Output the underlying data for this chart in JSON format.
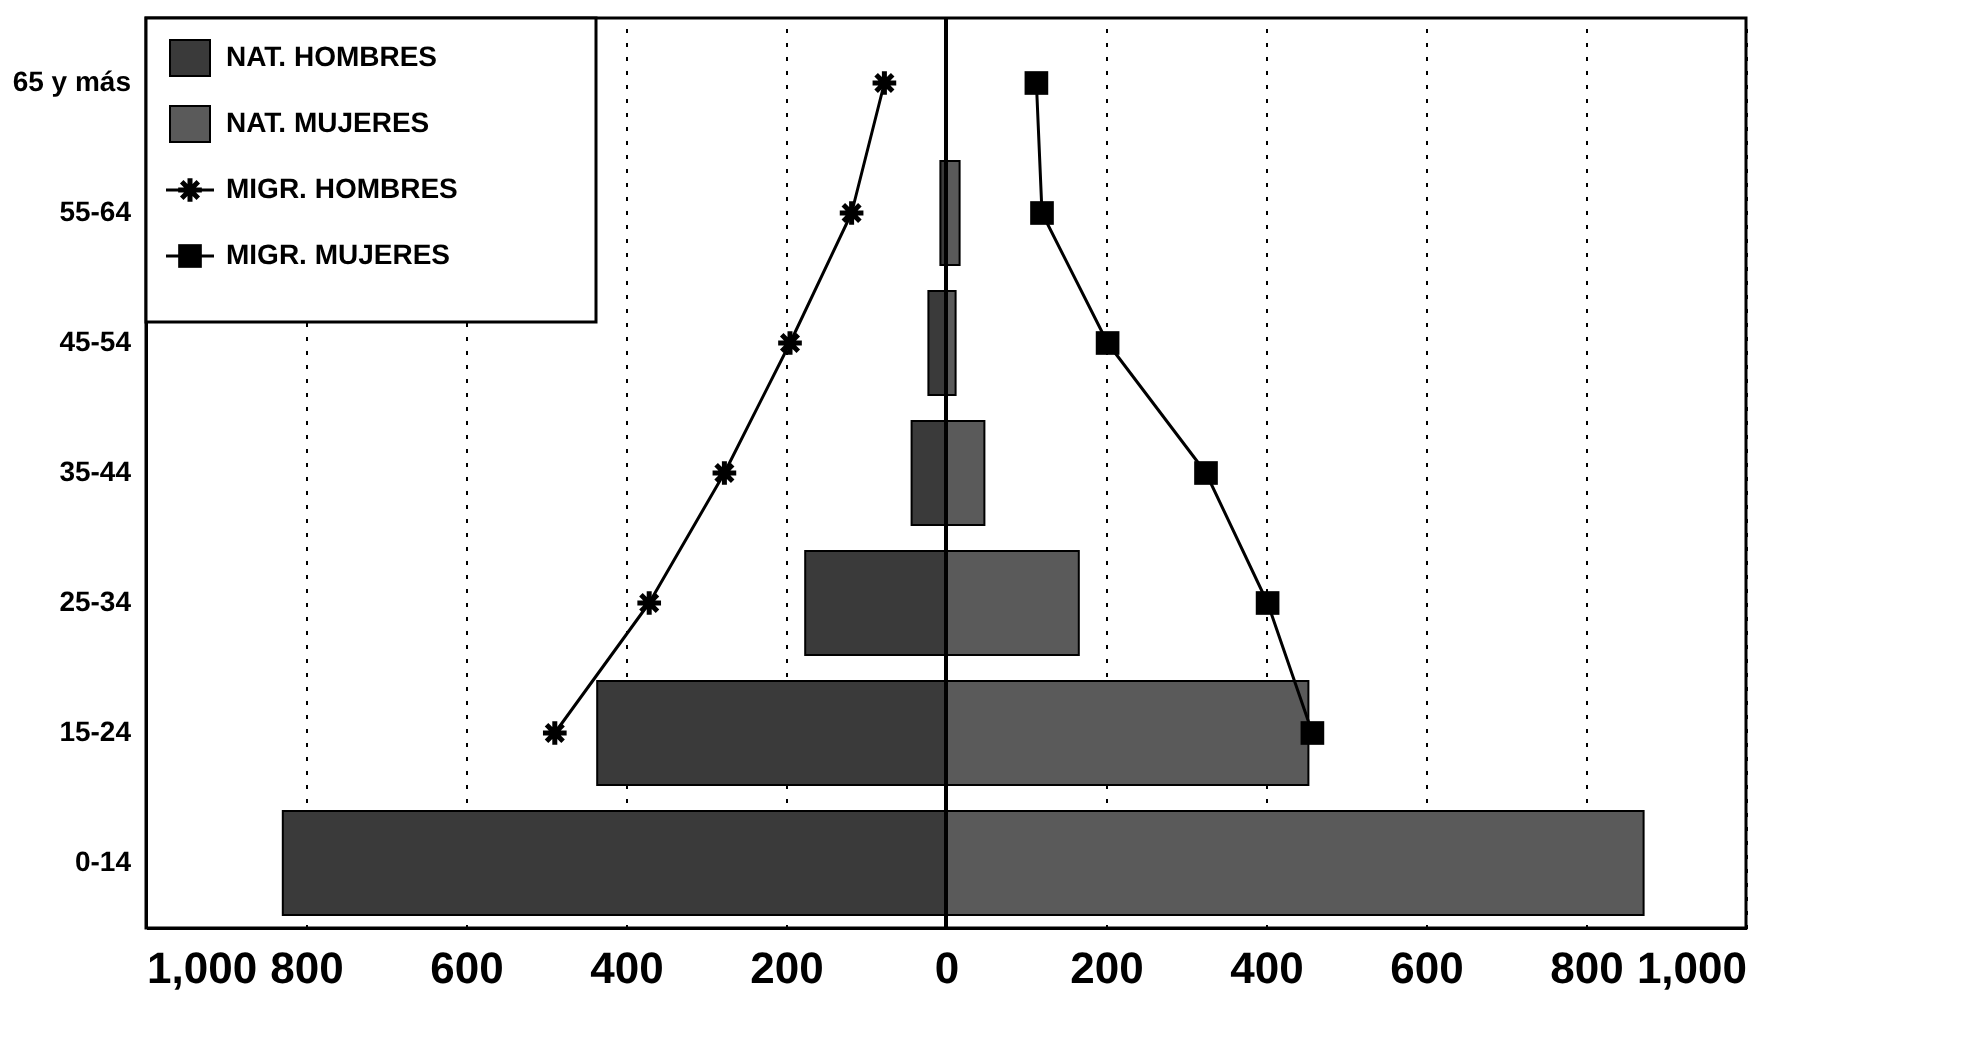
{
  "chart_data": {
    "type": "bar",
    "orientation": "horizontal",
    "categories": [
      "65 y más",
      "55-64",
      "45-54",
      "35-44",
      "25-34",
      "15-24",
      "0-14"
    ],
    "series": [
      {
        "name": "NAT. HOMBRES",
        "color": "#3a3a3a",
        "values": [
          null,
          -7,
          -22,
          -43,
          -176,
          -436,
          -829
        ]
      },
      {
        "name": "NAT. MUJERES",
        "color": "#5a5a5a",
        "values": [
          null,
          17,
          12,
          48,
          166,
          453,
          872
        ]
      },
      {
        "name": "MIGR. HOMBRES",
        "type": "line",
        "color": "#000000",
        "marker": "cross",
        "values": [
          -77,
          -118,
          -195,
          -277,
          -371,
          -489,
          null
        ]
      },
      {
        "name": "MIGR. MUJERES",
        "type": "line",
        "color": "#000000",
        "marker": "square",
        "values": [
          113,
          120,
          202,
          325,
          402,
          458,
          null
        ]
      }
    ],
    "xlim": [
      -1000,
      1000
    ],
    "xticks": [
      {
        "value": -1000,
        "label": "1,000"
      },
      {
        "value": -800,
        "label": "800"
      },
      {
        "value": -600,
        "label": "600"
      },
      {
        "value": -400,
        "label": "400"
      },
      {
        "value": -200,
        "label": "200"
      },
      0,
      200,
      400,
      600,
      800,
      {
        "value": 1000,
        "label": "1,000"
      }
    ],
    "ref_lines": [
      {
        "axis": "x",
        "value": 0,
        "color": "#000000"
      }
    ],
    "grid": "x",
    "legend": "top left",
    "stacked": true
  }
}
